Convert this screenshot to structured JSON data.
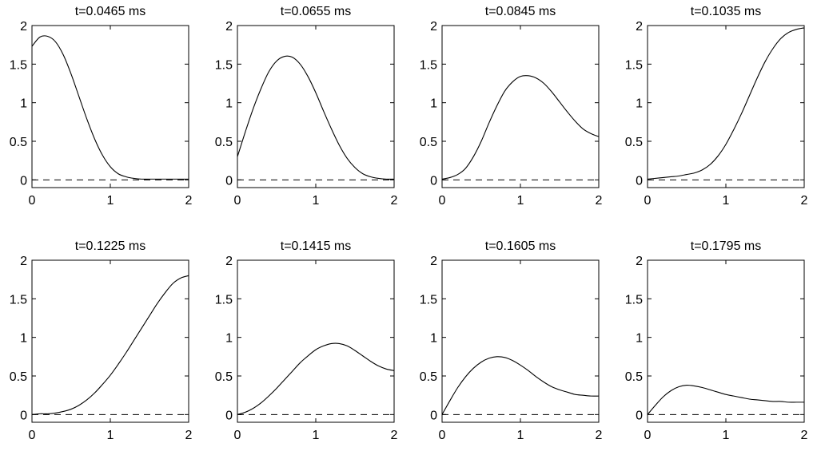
{
  "chart_data": [
    {
      "type": "line",
      "title": "t=0.0465 ms",
      "xlim": [
        0,
        2
      ],
      "ylim": [
        -0.1,
        2
      ],
      "xticks": [
        0,
        1,
        2
      ],
      "yticks": [
        0,
        0.5,
        1,
        1.5,
        2
      ],
      "xtick_labels": [
        "0",
        "1",
        "2"
      ],
      "ytick_labels": [
        "0",
        "0.5",
        "1",
        "1.5",
        "2"
      ],
      "reference_line": {
        "y": 0,
        "style": "dashed"
      },
      "series": [
        {
          "x": [
            0,
            0.1,
            0.2,
            0.3,
            0.4,
            0.5,
            0.6,
            0.7,
            0.8,
            0.9,
            1.0,
            1.1,
            1.2,
            1.3,
            1.4,
            1.5,
            1.7,
            2.0
          ],
          "y": [
            1.73,
            1.85,
            1.86,
            1.79,
            1.62,
            1.37,
            1.08,
            0.79,
            0.53,
            0.32,
            0.17,
            0.08,
            0.04,
            0.02,
            0.01,
            0.01,
            0.01,
            0.01
          ]
        }
      ]
    },
    {
      "type": "line",
      "title": "t=0.0655 ms",
      "xlim": [
        0,
        2
      ],
      "ylim": [
        -0.1,
        2
      ],
      "xticks": [
        0,
        1,
        2
      ],
      "yticks": [
        0,
        0.5,
        1,
        1.5,
        2
      ],
      "xtick_labels": [
        "0",
        "1",
        "2"
      ],
      "ytick_labels": [
        "0",
        "0.5",
        "1",
        "1.5",
        "2"
      ],
      "reference_line": {
        "y": 0,
        "style": "dashed"
      },
      "series": [
        {
          "x": [
            0,
            0.1,
            0.2,
            0.3,
            0.4,
            0.5,
            0.6,
            0.7,
            0.8,
            0.9,
            1.0,
            1.1,
            1.2,
            1.3,
            1.4,
            1.5,
            1.6,
            1.7,
            1.8,
            1.9,
            2.0
          ],
          "y": [
            0.3,
            0.62,
            0.92,
            1.18,
            1.4,
            1.54,
            1.6,
            1.59,
            1.5,
            1.34,
            1.13,
            0.89,
            0.66,
            0.45,
            0.28,
            0.16,
            0.08,
            0.04,
            0.02,
            0.01,
            0.01
          ]
        }
      ]
    },
    {
      "type": "line",
      "title": "t=0.0845 ms",
      "xlim": [
        0,
        2
      ],
      "ylim": [
        -0.1,
        2
      ],
      "xticks": [
        0,
        1,
        2
      ],
      "yticks": [
        0,
        0.5,
        1,
        1.5,
        2
      ],
      "xtick_labels": [
        "0",
        "1",
        "2"
      ],
      "ytick_labels": [
        "0",
        "0.5",
        "1",
        "1.5",
        "2"
      ],
      "reference_line": {
        "y": 0,
        "style": "dashed"
      },
      "series": [
        {
          "x": [
            0,
            0.1,
            0.2,
            0.3,
            0.4,
            0.5,
            0.6,
            0.7,
            0.8,
            0.9,
            1.0,
            1.1,
            1.2,
            1.3,
            1.4,
            1.5,
            1.6,
            1.7,
            1.8,
            1.9,
            2.0
          ],
          "y": [
            0.01,
            0.03,
            0.07,
            0.15,
            0.3,
            0.5,
            0.74,
            0.96,
            1.15,
            1.27,
            1.34,
            1.35,
            1.32,
            1.25,
            1.14,
            1.01,
            0.88,
            0.76,
            0.66,
            0.6,
            0.56
          ]
        }
      ]
    },
    {
      "type": "line",
      "title": "t=0.1035 ms",
      "xlim": [
        0,
        2
      ],
      "ylim": [
        -0.1,
        2
      ],
      "xticks": [
        0,
        1,
        2
      ],
      "yticks": [
        0,
        0.5,
        1,
        1.5,
        2
      ],
      "xtick_labels": [
        "0",
        "1",
        "2"
      ],
      "ytick_labels": [
        "0",
        "0.5",
        "1",
        "1.5",
        "2"
      ],
      "reference_line": {
        "y": 0,
        "style": "dashed"
      },
      "series": [
        {
          "x": [
            0,
            0.1,
            0.2,
            0.3,
            0.4,
            0.5,
            0.6,
            0.7,
            0.8,
            0.9,
            1.0,
            1.1,
            1.2,
            1.3,
            1.4,
            1.5,
            1.6,
            1.7,
            1.8,
            1.9,
            2.0
          ],
          "y": [
            0.01,
            0.02,
            0.03,
            0.04,
            0.05,
            0.07,
            0.09,
            0.13,
            0.2,
            0.31,
            0.46,
            0.65,
            0.86,
            1.09,
            1.32,
            1.53,
            1.7,
            1.83,
            1.91,
            1.95,
            1.97
          ]
        }
      ]
    },
    {
      "type": "line",
      "title": "t=0.1225 ms",
      "xlim": [
        0,
        2
      ],
      "ylim": [
        -0.1,
        2
      ],
      "xticks": [
        0,
        1,
        2
      ],
      "yticks": [
        0,
        0.5,
        1,
        1.5,
        2
      ],
      "xtick_labels": [
        "0",
        "1",
        "2"
      ],
      "ytick_labels": [
        "0",
        "0.5",
        "1",
        "1.5",
        "2"
      ],
      "reference_line": {
        "y": 0,
        "style": "dashed"
      },
      "series": [
        {
          "x": [
            0,
            0.1,
            0.2,
            0.3,
            0.4,
            0.5,
            0.6,
            0.7,
            0.8,
            0.9,
            1.0,
            1.1,
            1.2,
            1.3,
            1.4,
            1.5,
            1.6,
            1.7,
            1.8,
            1.9,
            2.0
          ],
          "y": [
            0.0,
            0.01,
            0.01,
            0.02,
            0.04,
            0.07,
            0.12,
            0.19,
            0.28,
            0.39,
            0.51,
            0.65,
            0.8,
            0.96,
            1.12,
            1.28,
            1.44,
            1.58,
            1.7,
            1.77,
            1.8
          ]
        }
      ]
    },
    {
      "type": "line",
      "title": "t=0.1415 ms",
      "xlim": [
        0,
        2
      ],
      "ylim": [
        -0.1,
        2
      ],
      "xticks": [
        0,
        1,
        2
      ],
      "yticks": [
        0,
        0.5,
        1,
        1.5,
        2
      ],
      "xtick_labels": [
        "0",
        "1",
        "2"
      ],
      "ytick_labels": [
        "0",
        "0.5",
        "1",
        "1.5",
        "2"
      ],
      "reference_line": {
        "y": 0,
        "style": "dashed"
      },
      "series": [
        {
          "x": [
            0,
            0.1,
            0.2,
            0.3,
            0.4,
            0.5,
            0.6,
            0.7,
            0.8,
            0.9,
            1.0,
            1.1,
            1.2,
            1.3,
            1.4,
            1.5,
            1.6,
            1.7,
            1.8,
            1.9,
            2.0
          ],
          "y": [
            0.0,
            0.03,
            0.08,
            0.15,
            0.24,
            0.34,
            0.45,
            0.56,
            0.67,
            0.76,
            0.84,
            0.89,
            0.92,
            0.92,
            0.89,
            0.83,
            0.76,
            0.69,
            0.63,
            0.59,
            0.57
          ]
        }
      ]
    },
    {
      "type": "line",
      "title": "t=0.1605 ms",
      "xlim": [
        0,
        2
      ],
      "ylim": [
        -0.1,
        2
      ],
      "xticks": [
        0,
        1,
        2
      ],
      "yticks": [
        0,
        0.5,
        1,
        1.5,
        2
      ],
      "xtick_labels": [
        "0",
        "1",
        "2"
      ],
      "ytick_labels": [
        "0",
        "0.5",
        "1",
        "1.5",
        "2"
      ],
      "reference_line": {
        "y": 0,
        "style": "dashed"
      },
      "series": [
        {
          "x": [
            0,
            0.1,
            0.2,
            0.3,
            0.4,
            0.5,
            0.6,
            0.7,
            0.8,
            0.9,
            1.0,
            1.1,
            1.2,
            1.3,
            1.4,
            1.5,
            1.6,
            1.7,
            1.8,
            1.9,
            2.0
          ],
          "y": [
            0.0,
            0.18,
            0.35,
            0.49,
            0.6,
            0.68,
            0.73,
            0.75,
            0.74,
            0.7,
            0.64,
            0.57,
            0.49,
            0.42,
            0.36,
            0.32,
            0.29,
            0.26,
            0.25,
            0.24,
            0.24
          ]
        }
      ]
    },
    {
      "type": "line",
      "title": "t=0.1795 ms",
      "xlim": [
        0,
        2
      ],
      "ylim": [
        -0.1,
        2
      ],
      "xticks": [
        0,
        1,
        2
      ],
      "yticks": [
        0,
        0.5,
        1,
        1.5,
        2
      ],
      "xtick_labels": [
        "0",
        "1",
        "2"
      ],
      "ytick_labels": [
        "0",
        "0.5",
        "1",
        "1.5",
        "2"
      ],
      "reference_line": {
        "y": 0,
        "style": "dashed"
      },
      "series": [
        {
          "x": [
            0,
            0.1,
            0.2,
            0.3,
            0.4,
            0.5,
            0.6,
            0.7,
            0.8,
            0.9,
            1.0,
            1.1,
            1.2,
            1.3,
            1.4,
            1.5,
            1.6,
            1.7,
            1.8,
            1.9,
            2.0
          ],
          "y": [
            0.0,
            0.12,
            0.23,
            0.31,
            0.36,
            0.38,
            0.37,
            0.35,
            0.32,
            0.29,
            0.26,
            0.24,
            0.22,
            0.2,
            0.19,
            0.18,
            0.17,
            0.17,
            0.16,
            0.16,
            0.16
          ]
        }
      ]
    }
  ]
}
